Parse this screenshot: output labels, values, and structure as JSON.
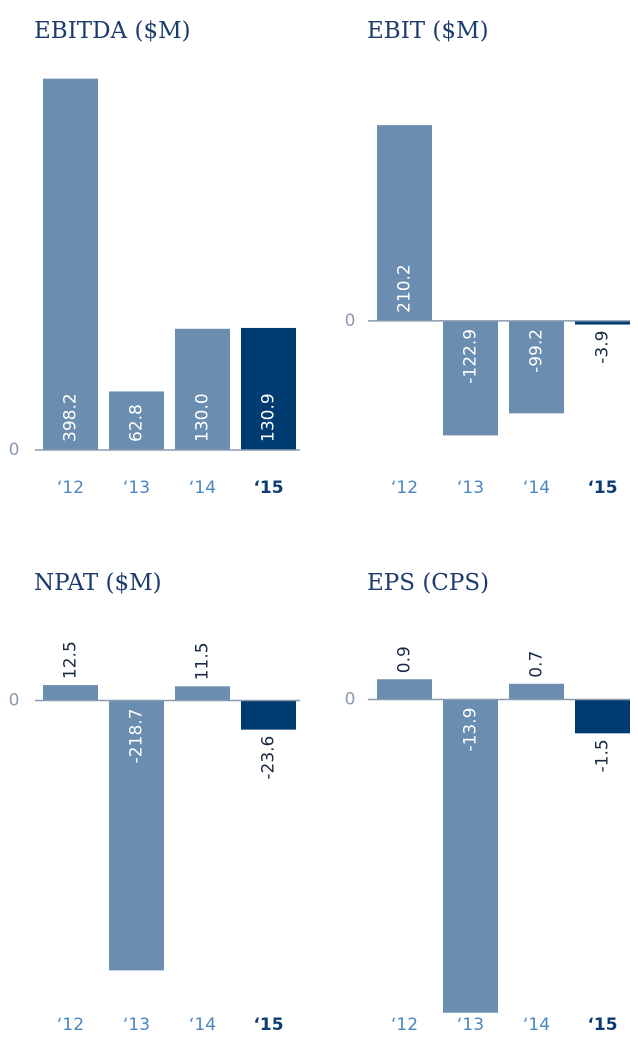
{
  "chart_data": [
    {
      "type": "bar",
      "title": "EBITDA ($M)",
      "categories": [
        "‘12",
        "‘13",
        "‘14",
        "‘15"
      ],
      "values": [
        398.2,
        62.8,
        130.0,
        130.9
      ],
      "value_labels": [
        "398.2",
        "62.8",
        "130.0",
        "130.9"
      ],
      "color": "#6b8db0",
      "highlight_color": "#003b71",
      "highlight_index": 3,
      "ylim": [
        0,
        400
      ],
      "yticks": [
        0
      ]
    },
    {
      "type": "bar",
      "title": "EBIT ($M)",
      "categories": [
        "‘12",
        "‘13",
        "‘14",
        "‘15"
      ],
      "values": [
        210.2,
        -122.9,
        -99.2,
        -3.9
      ],
      "value_labels": [
        "210.2",
        "-122.9",
        "-99.2",
        "-3.9"
      ],
      "color": "#6b8db0",
      "highlight_color": "#003b71",
      "highlight_index": 3,
      "ylim": [
        -130,
        220
      ],
      "yticks": [
        0
      ]
    },
    {
      "type": "bar",
      "title": "NPAT ($M)",
      "categories": [
        "‘12",
        "‘13",
        "‘14",
        "‘15"
      ],
      "values": [
        12.5,
        -218.7,
        11.5,
        -23.6
      ],
      "value_labels": [
        "12.5",
        "-218.7",
        "11.5",
        "-23.6"
      ],
      "color": "#6b8db0",
      "highlight_color": "#003b71",
      "highlight_index": 3,
      "ylim": [
        -220,
        15
      ],
      "yticks": [
        0
      ]
    },
    {
      "type": "bar",
      "title": "EPS (CPS)",
      "categories": [
        "‘12",
        "‘13",
        "‘14",
        "‘15"
      ],
      "values": [
        0.9,
        -13.9,
        0.7,
        -1.5
      ],
      "value_labels": [
        "0.9",
        "-13.9",
        "0.7",
        "-1.5"
      ],
      "color": "#6b8db0",
      "highlight_color": "#003b71",
      "highlight_index": 3,
      "ylim": [
        -14,
        1
      ],
      "yticks": [
        0
      ]
    }
  ]
}
